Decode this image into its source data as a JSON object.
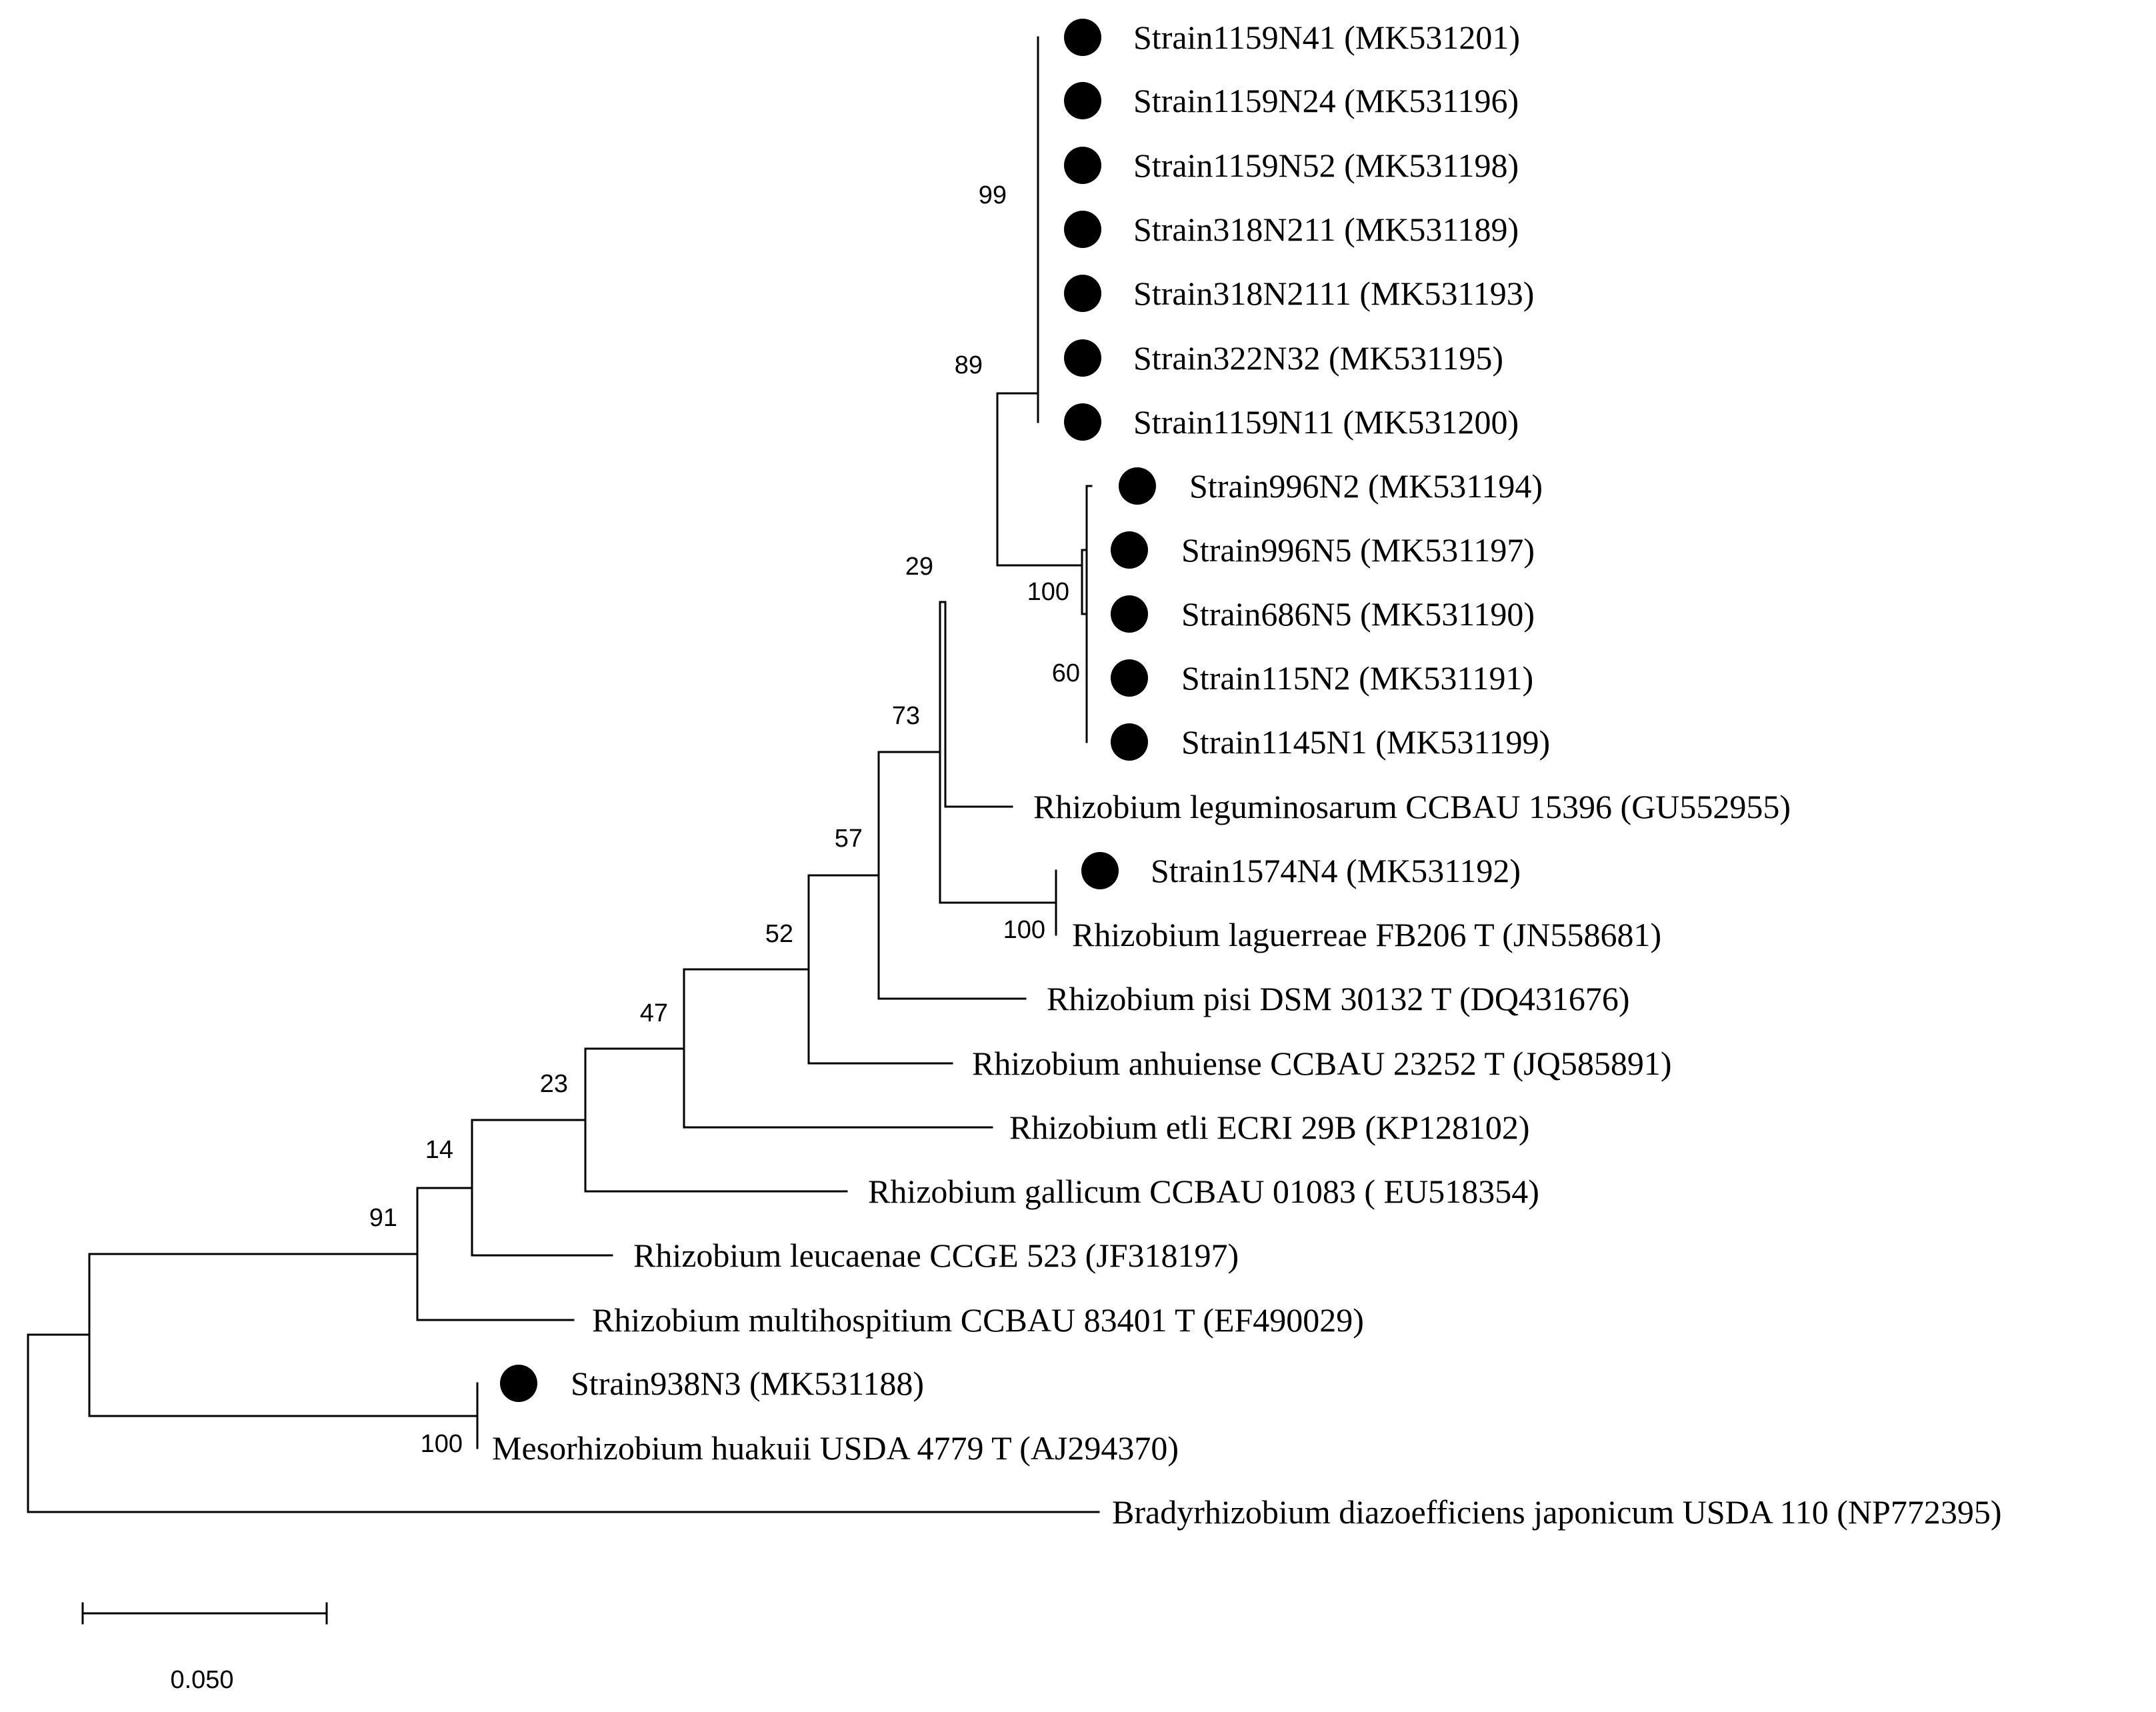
{
  "figure": {
    "type": "phylogenetic-tree",
    "marker_color": "#000000",
    "line_color": "#000000"
  },
  "leaves": [
    {
      "id": "s1159n41",
      "label": "Strain1159N41 (MK531201)",
      "marker": true
    },
    {
      "id": "s1159n24",
      "label": "Strain1159N24 (MK531196)",
      "marker": true
    },
    {
      "id": "s1159n52",
      "label": "Strain1159N52 (MK531198)",
      "marker": true
    },
    {
      "id": "s318n211",
      "label": "Strain318N211 (MK531189)",
      "marker": true
    },
    {
      "id": "s318n2111",
      "label": "Strain318N2111 (MK531193)",
      "marker": true
    },
    {
      "id": "s322n32",
      "label": "Strain322N32 (MK531195)",
      "marker": true
    },
    {
      "id": "s1159n11",
      "label": "Strain1159N11 (MK531200)",
      "marker": true
    },
    {
      "id": "s996n2",
      "label": "Strain996N2 (MK531194)",
      "marker": true
    },
    {
      "id": "s996n5",
      "label": "Strain996N5 (MK531197)",
      "marker": true
    },
    {
      "id": "s686n5",
      "label": "Strain686N5 (MK531190)",
      "marker": true
    },
    {
      "id": "s115n2",
      "label": "Strain115N2 (MK531191)",
      "marker": true
    },
    {
      "id": "s1145n1",
      "label": "Strain1145N1 (MK531199)",
      "marker": true
    },
    {
      "id": "rleg",
      "label": "Rhizobium leguminosarum CCBAU 15396 (GU552955)",
      "marker": false
    },
    {
      "id": "s1574n4",
      "label": "Strain1574N4 (MK531192)",
      "marker": true
    },
    {
      "id": "rlag",
      "label": "Rhizobium laguerreae FB206 T (JN558681)",
      "marker": false
    },
    {
      "id": "rpisi",
      "label": "Rhizobium pisi DSM 30132 T (DQ431676)",
      "marker": false
    },
    {
      "id": "ranh",
      "label": "Rhizobium anhuiense CCBAU 23252 T (JQ585891)",
      "marker": false
    },
    {
      "id": "retli",
      "label": "Rhizobium etli ECRI 29B (KP128102)",
      "marker": false
    },
    {
      "id": "rgal",
      "label": "Rhizobium gallicum CCBAU 01083 ( EU518354)",
      "marker": false
    },
    {
      "id": "rleu",
      "label": "Rhizobium leucaenae CCGE 523 (JF318197)",
      "marker": false
    },
    {
      "id": "rmul",
      "label": "Rhizobium multihospitium CCBAU 83401 T (EF490029)",
      "marker": false
    },
    {
      "id": "s938n3",
      "label": "Strain938N3 (MK531188)",
      "marker": true
    },
    {
      "id": "mhua",
      "label": "Mesorhizobium huakuii  USDA 4779 T (AJ294370)",
      "marker": false
    },
    {
      "id": "brady",
      "label": "Bradyrhizobium diazoefficiens japonicum USDA 110 (NP772395)",
      "marker": false
    }
  ],
  "support_values": [
    {
      "node": "n99",
      "value": "99"
    },
    {
      "node": "n89",
      "value": "89"
    },
    {
      "node": "n100a",
      "value": "100"
    },
    {
      "node": "n60",
      "value": "60"
    },
    {
      "node": "n29",
      "value": "29"
    },
    {
      "node": "n73",
      "value": "73"
    },
    {
      "node": "n100b",
      "value": "100"
    },
    {
      "node": "n57",
      "value": "57"
    },
    {
      "node": "n52",
      "value": "52"
    },
    {
      "node": "n47",
      "value": "47"
    },
    {
      "node": "n23",
      "value": "23"
    },
    {
      "node": "n14",
      "value": "14"
    },
    {
      "node": "n91",
      "value": "91"
    },
    {
      "node": "n100c",
      "value": "100"
    }
  ],
  "scale_bar": {
    "value": 0.05,
    "label": "0.050"
  }
}
